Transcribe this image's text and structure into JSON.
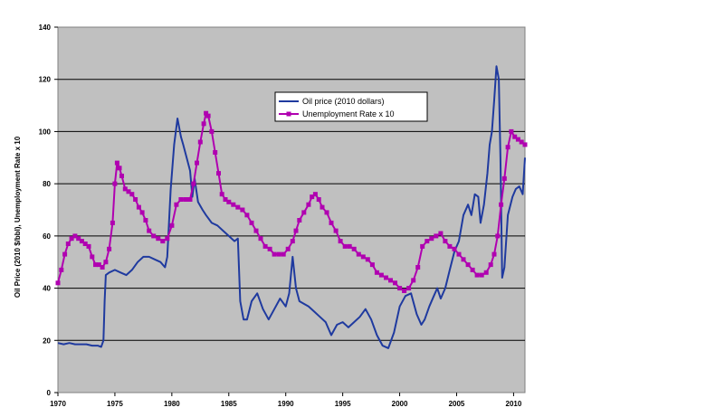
{
  "chart_data": {
    "type": "line",
    "title": "",
    "xlabel": "",
    "ylabel": "Oil Price (2010 $/bbl), Unemployment Rate x 10",
    "xlim": [
      1970,
      2011
    ],
    "ylim": [
      0,
      140
    ],
    "x_ticks": [
      1970,
      1975,
      1980,
      1985,
      1990,
      1995,
      2000,
      2005,
      2010
    ],
    "y_ticks": [
      0,
      20,
      40,
      60,
      80,
      100,
      120,
      140
    ],
    "grid": "horizontal",
    "legend_position": "upper-center",
    "series": [
      {
        "name": "Oil price (2010 dollars)",
        "color": "#1f3a9f",
        "marker": "none",
        "points": [
          [
            1970.0,
            19
          ],
          [
            1970.5,
            18.5
          ],
          [
            1971.0,
            19
          ],
          [
            1971.5,
            18.5
          ],
          [
            1972.0,
            18.5
          ],
          [
            1972.5,
            18.5
          ],
          [
            1973.0,
            18
          ],
          [
            1973.5,
            18
          ],
          [
            1973.8,
            17.5
          ],
          [
            1974.0,
            20
          ],
          [
            1974.1,
            35
          ],
          [
            1974.2,
            45
          ],
          [
            1974.5,
            46
          ],
          [
            1975.0,
            47
          ],
          [
            1975.5,
            46
          ],
          [
            1976.0,
            45
          ],
          [
            1976.5,
            47
          ],
          [
            1977.0,
            50
          ],
          [
            1977.5,
            52
          ],
          [
            1978.0,
            52
          ],
          [
            1978.5,
            51
          ],
          [
            1979.0,
            50
          ],
          [
            1979.4,
            48
          ],
          [
            1979.6,
            52
          ],
          [
            1979.9,
            78
          ],
          [
            1980.2,
            95
          ],
          [
            1980.5,
            105
          ],
          [
            1980.8,
            98
          ],
          [
            1981.0,
            95
          ],
          [
            1981.3,
            90
          ],
          [
            1981.6,
            85
          ],
          [
            1981.8,
            75
          ],
          [
            1982.0,
            82
          ],
          [
            1982.3,
            73
          ],
          [
            1982.7,
            70
          ],
          [
            1983.0,
            68
          ],
          [
            1983.5,
            65
          ],
          [
            1984.0,
            64
          ],
          [
            1984.5,
            62
          ],
          [
            1985.0,
            60
          ],
          [
            1985.5,
            58
          ],
          [
            1985.8,
            59
          ],
          [
            1986.0,
            35
          ],
          [
            1986.3,
            28
          ],
          [
            1986.6,
            28
          ],
          [
            1987.0,
            35
          ],
          [
            1987.5,
            38
          ],
          [
            1988.0,
            32
          ],
          [
            1988.5,
            28
          ],
          [
            1989.0,
            32
          ],
          [
            1989.5,
            36
          ],
          [
            1990.0,
            33
          ],
          [
            1990.3,
            38
          ],
          [
            1990.6,
            52
          ],
          [
            1990.9,
            40
          ],
          [
            1991.2,
            35
          ],
          [
            1991.6,
            34
          ],
          [
            1992.0,
            33
          ],
          [
            1992.5,
            31
          ],
          [
            1993.0,
            29
          ],
          [
            1993.5,
            27
          ],
          [
            1994.0,
            22
          ],
          [
            1994.5,
            26
          ],
          [
            1995.0,
            27
          ],
          [
            1995.5,
            25
          ],
          [
            1996.0,
            27
          ],
          [
            1996.5,
            29
          ],
          [
            1997.0,
            32
          ],
          [
            1997.5,
            28
          ],
          [
            1998.0,
            22
          ],
          [
            1998.5,
            18
          ],
          [
            1999.0,
            17
          ],
          [
            1999.5,
            23
          ],
          [
            2000.0,
            33
          ],
          [
            2000.5,
            37
          ],
          [
            2001.0,
            38
          ],
          [
            2001.5,
            30
          ],
          [
            2001.9,
            26
          ],
          [
            2002.2,
            28
          ],
          [
            2002.6,
            33
          ],
          [
            2003.0,
            37
          ],
          [
            2003.3,
            40
          ],
          [
            2003.6,
            36
          ],
          [
            2004.0,
            40
          ],
          [
            2004.4,
            47
          ],
          [
            2004.8,
            54
          ],
          [
            2005.2,
            58
          ],
          [
            2005.6,
            68
          ],
          [
            2006.0,
            72
          ],
          [
            2006.3,
            68
          ],
          [
            2006.6,
            76
          ],
          [
            2006.9,
            75
          ],
          [
            2007.1,
            65
          ],
          [
            2007.4,
            72
          ],
          [
            2007.7,
            84
          ],
          [
            2007.9,
            95
          ],
          [
            2008.1,
            100
          ],
          [
            2008.3,
            112
          ],
          [
            2008.5,
            125
          ],
          [
            2008.7,
            120
          ],
          [
            2008.85,
            90
          ],
          [
            2009.0,
            44
          ],
          [
            2009.2,
            48
          ],
          [
            2009.5,
            68
          ],
          [
            2009.9,
            75
          ],
          [
            2010.2,
            78
          ],
          [
            2010.5,
            79
          ],
          [
            2010.8,
            76
          ],
          [
            2011.0,
            90
          ]
        ]
      },
      {
        "name": "Unemployment Rate x 10",
        "color": "#b000b0",
        "marker": "square",
        "points": [
          [
            1970.0,
            42
          ],
          [
            1970.3,
            47
          ],
          [
            1970.6,
            53
          ],
          [
            1970.9,
            57
          ],
          [
            1971.2,
            59
          ],
          [
            1971.5,
            60
          ],
          [
            1971.8,
            59
          ],
          [
            1972.1,
            58
          ],
          [
            1972.4,
            57
          ],
          [
            1972.7,
            56
          ],
          [
            1973.0,
            52
          ],
          [
            1973.3,
            49
          ],
          [
            1973.6,
            49
          ],
          [
            1973.9,
            48
          ],
          [
            1974.2,
            50
          ],
          [
            1974.5,
            55
          ],
          [
            1974.8,
            65
          ],
          [
            1975.0,
            80
          ],
          [
            1975.2,
            88
          ],
          [
            1975.4,
            86
          ],
          [
            1975.6,
            83
          ],
          [
            1975.9,
            78
          ],
          [
            1976.2,
            77
          ],
          [
            1976.5,
            76
          ],
          [
            1976.8,
            74
          ],
          [
            1977.1,
            71
          ],
          [
            1977.4,
            69
          ],
          [
            1977.7,
            66
          ],
          [
            1978.0,
            62
          ],
          [
            1978.4,
            60
          ],
          [
            1978.8,
            59
          ],
          [
            1979.2,
            58
          ],
          [
            1979.6,
            59
          ],
          [
            1980.0,
            64
          ],
          [
            1980.4,
            72
          ],
          [
            1980.8,
            74
          ],
          [
            1981.2,
            74
          ],
          [
            1981.6,
            74
          ],
          [
            1981.9,
            80
          ],
          [
            1982.2,
            88
          ],
          [
            1982.5,
            96
          ],
          [
            1982.8,
            103
          ],
          [
            1983.0,
            107
          ],
          [
            1983.2,
            106
          ],
          [
            1983.5,
            100
          ],
          [
            1983.8,
            92
          ],
          [
            1984.1,
            84
          ],
          [
            1984.4,
            76
          ],
          [
            1984.7,
            74
          ],
          [
            1985.0,
            73
          ],
          [
            1985.4,
            72
          ],
          [
            1985.8,
            71
          ],
          [
            1986.2,
            70
          ],
          [
            1986.6,
            68
          ],
          [
            1987.0,
            65
          ],
          [
            1987.4,
            62
          ],
          [
            1987.8,
            59
          ],
          [
            1988.2,
            56
          ],
          [
            1988.6,
            55
          ],
          [
            1989.0,
            53
          ],
          [
            1989.4,
            53
          ],
          [
            1989.8,
            53
          ],
          [
            1990.2,
            55
          ],
          [
            1990.6,
            58
          ],
          [
            1990.9,
            62
          ],
          [
            1991.2,
            66
          ],
          [
            1991.6,
            69
          ],
          [
            1992.0,
            72
          ],
          [
            1992.3,
            75
          ],
          [
            1992.6,
            76
          ],
          [
            1992.9,
            74
          ],
          [
            1993.2,
            71
          ],
          [
            1993.6,
            69
          ],
          [
            1994.0,
            65
          ],
          [
            1994.4,
            62
          ],
          [
            1994.8,
            58
          ],
          [
            1995.2,
            56
          ],
          [
            1995.6,
            56
          ],
          [
            1996.0,
            55
          ],
          [
            1996.4,
            53
          ],
          [
            1996.8,
            52
          ],
          [
            1997.2,
            51
          ],
          [
            1997.6,
            49
          ],
          [
            1998.0,
            46
          ],
          [
            1998.4,
            45
          ],
          [
            1998.8,
            44
          ],
          [
            1999.2,
            43
          ],
          [
            1999.6,
            42
          ],
          [
            2000.0,
            40
          ],
          [
            2000.4,
            39
          ],
          [
            2000.8,
            40
          ],
          [
            2001.2,
            43
          ],
          [
            2001.6,
            48
          ],
          [
            2002.0,
            56
          ],
          [
            2002.4,
            58
          ],
          [
            2002.8,
            59
          ],
          [
            2003.2,
            60
          ],
          [
            2003.6,
            61
          ],
          [
            2004.0,
            58
          ],
          [
            2004.4,
            56
          ],
          [
            2004.8,
            55
          ],
          [
            2005.2,
            53
          ],
          [
            2005.6,
            51
          ],
          [
            2006.0,
            49
          ],
          [
            2006.4,
            47
          ],
          [
            2006.8,
            45
          ],
          [
            2007.2,
            45
          ],
          [
            2007.6,
            46
          ],
          [
            2008.0,
            49
          ],
          [
            2008.3,
            53
          ],
          [
            2008.6,
            60
          ],
          [
            2008.9,
            72
          ],
          [
            2009.2,
            82
          ],
          [
            2009.5,
            94
          ],
          [
            2009.8,
            100
          ],
          [
            2010.1,
            98
          ],
          [
            2010.4,
            97
          ],
          [
            2010.7,
            96
          ],
          [
            2011.0,
            95
          ]
        ]
      }
    ]
  }
}
